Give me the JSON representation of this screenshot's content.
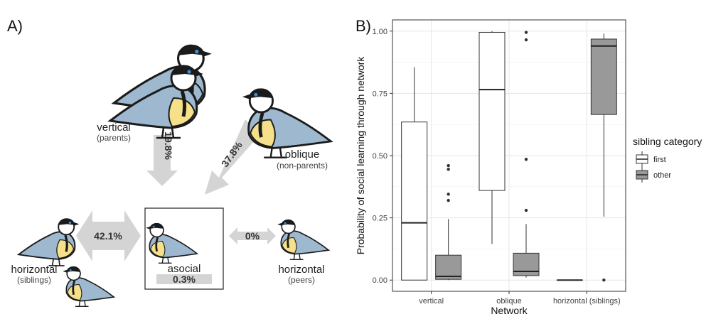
{
  "panel_a": {
    "letter": "A)",
    "nodes": {
      "vertical": {
        "label": "vertical",
        "sub": "(parents)"
      },
      "oblique": {
        "label": "oblique",
        "sub": "(non-parents)"
      },
      "siblings": {
        "label": "horizontal",
        "sub": "(siblings)"
      },
      "asocial": {
        "label": "asocial"
      },
      "peers": {
        "label": "horizontal",
        "sub": "(peers)"
      }
    },
    "percentages": {
      "vertical": "19.8%",
      "oblique": "37.8%",
      "siblings": "42.1%",
      "peers": "0%",
      "asocial": "0.3%"
    },
    "colors": {
      "arrow": "#d4d4d4",
      "bird_blue": "#9db8cf",
      "bird_yellow": "#f7e08a",
      "bird_black": "#1b1b1b",
      "bird_spot": "#3a8fd6"
    }
  },
  "chart_data": {
    "type": "box",
    "letter": "B)",
    "xlabel": "Network",
    "ylabel": "Probability of social learning through network",
    "categories": [
      "vertical",
      "oblique",
      "horizontal (siblings)"
    ],
    "ylim": [
      0,
      1
    ],
    "yticks": [
      "0.00",
      "0.25",
      "0.50",
      "0.75",
      "1.00"
    ],
    "ytick_values": [
      0,
      0.25,
      0.5,
      0.75,
      1
    ],
    "grid": true,
    "legend": {
      "title": "sibling category",
      "position": "right"
    },
    "series": [
      {
        "name": "first",
        "color": "#ffffff",
        "boxes": [
          {
            "category": "vertical",
            "min": 0.0,
            "q1": 0.0,
            "median": 0.23,
            "q3": 0.635,
            "max": 0.855,
            "outliers": []
          },
          {
            "category": "oblique",
            "min": 0.145,
            "q1": 0.36,
            "median": 0.765,
            "q3": 0.995,
            "max": 1.0,
            "outliers": []
          },
          {
            "category": "horizontal (siblings)",
            "min": 0.0,
            "q1": 0.0,
            "median": 0.0,
            "q3": 0.0,
            "max": 0.0,
            "outliers": []
          }
        ]
      },
      {
        "name": "other",
        "color": "#999999",
        "boxes": [
          {
            "category": "vertical",
            "min": 0.0,
            "q1": 0.003,
            "median": 0.015,
            "q3": 0.1,
            "max": 0.245,
            "outliers": [
              0.32,
              0.345,
              0.445,
              0.46
            ]
          },
          {
            "category": "oblique",
            "min": 0.01,
            "q1": 0.018,
            "median": 0.035,
            "q3": 0.108,
            "max": 0.225,
            "outliers": [
              0.28,
              0.485,
              0.965,
              0.995
            ]
          },
          {
            "category": "horizontal (siblings)",
            "min": 0.255,
            "q1": 0.665,
            "median": 0.94,
            "q3": 0.968,
            "max": 0.99,
            "outliers": [
              0.0
            ]
          }
        ]
      }
    ]
  }
}
